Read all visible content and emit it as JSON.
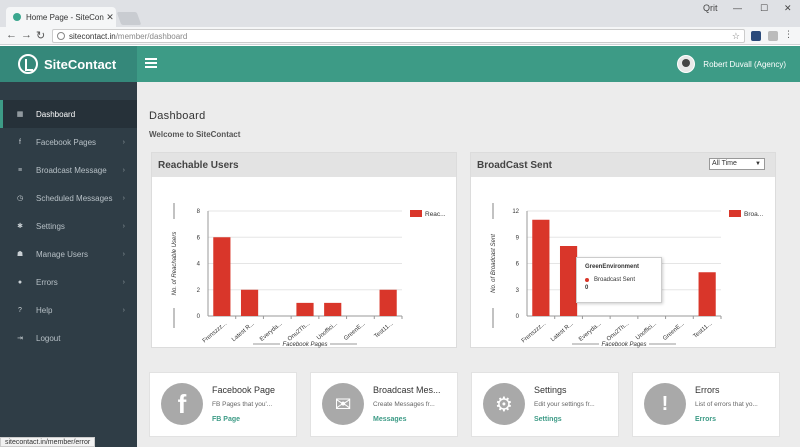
{
  "browser": {
    "tab_title": "Home Page - SiteContac",
    "tab_close": "✕",
    "window_label": "Qrit",
    "url_host": "sitecontact.in",
    "url_path": "/member/dashboard",
    "status_url": "sitecontact.in/member/error"
  },
  "header": {
    "logo_text": "SiteContact",
    "user_name": "Robert Duvall (Agency)"
  },
  "sidebar": {
    "items": [
      {
        "label": "Dashboard",
        "icon": "grid-icon",
        "glyph": "▦",
        "active": true,
        "has_chevron": false
      },
      {
        "label": "Facebook Pages",
        "icon": "facebook-icon",
        "glyph": "f",
        "active": false,
        "has_chevron": true
      },
      {
        "label": "Broadcast Message",
        "icon": "list-icon",
        "glyph": "≡",
        "active": false,
        "has_chevron": true
      },
      {
        "label": "Scheduled Messages",
        "icon": "clock-icon",
        "glyph": "◷",
        "active": false,
        "has_chevron": true
      },
      {
        "label": "Settings",
        "icon": "gear-icon",
        "glyph": "✱",
        "active": false,
        "has_chevron": true
      },
      {
        "label": "Manage Users",
        "icon": "users-icon",
        "glyph": "☗",
        "active": false,
        "has_chevron": true
      },
      {
        "label": "Errors",
        "icon": "error-icon",
        "glyph": "●",
        "active": false,
        "has_chevron": true
      },
      {
        "label": "Help",
        "icon": "question-icon",
        "glyph": "?",
        "active": false,
        "has_chevron": true
      },
      {
        "label": "Logout",
        "icon": "logout-icon",
        "glyph": "⇥",
        "active": false,
        "has_chevron": false
      }
    ]
  },
  "main": {
    "title": "Dashboard",
    "subtitle": "Welcome to SiteContact"
  },
  "panels": {
    "reachable_title": "Reachable Users",
    "broadcast_title": "BroadCast Sent",
    "range_select": "All Time",
    "tooltip": {
      "title": "GreenEnvironment",
      "series": "Broadcast Sent",
      "value": "0"
    }
  },
  "chart_data": [
    {
      "type": "bar",
      "categories": [
        "Frenszzz...",
        "Latest R...",
        "Everyda...",
        "Onu2Th...",
        "Unoffici...",
        "GreenE...",
        "Test11..."
      ],
      "values": [
        6,
        2,
        0,
        1,
        1,
        0,
        2
      ],
      "series": [
        {
          "name": "Reac...",
          "values": [
            6,
            2,
            0,
            1,
            1,
            0,
            2
          ]
        }
      ],
      "xlabel": "Facebook Pages",
      "ylabel": "No. of Reachable Users",
      "yticks": [
        "0",
        "2",
        "4",
        "6",
        "8"
      ],
      "ylim": [
        0,
        8
      ],
      "color": "#d9362a",
      "legend": "top-right",
      "grid": true
    },
    {
      "type": "bar",
      "categories": [
        "Frenszzz...",
        "Latest R...",
        "Everyda...",
        "Onu2Th...",
        "Unoffici...",
        "GreenE...",
        "Test11..."
      ],
      "values": [
        11,
        8,
        0,
        0,
        0,
        0,
        5
      ],
      "series": [
        {
          "name": "Broa...",
          "values": [
            11,
            8,
            0,
            0,
            0,
            0,
            5
          ]
        }
      ],
      "xlabel": "Facebook Pages",
      "ylabel": "No. of Broadcast Sent",
      "yticks": [
        "0",
        "3",
        "6",
        "9",
        "12"
      ],
      "ylim": [
        0,
        12
      ],
      "color": "#d9362a",
      "legend": "top-right",
      "grid": true
    }
  ],
  "cards": [
    {
      "title": "Facebook Page",
      "sub": "FB Pages that you'...",
      "link": "FB Page",
      "icon": "facebook-circle-icon",
      "glyph": "f"
    },
    {
      "title": "Broadcast Mes...",
      "sub": "Create Messages fr...",
      "link": "Messages",
      "icon": "envelope-circle-icon",
      "glyph": "✉"
    },
    {
      "title": "Settings",
      "sub": "Edit your settings fr...",
      "link": "Settings",
      "icon": "gears-icon",
      "glyph": "⚙"
    },
    {
      "title": "Errors",
      "sub": "List of errors that yo...",
      "link": "Errors",
      "icon": "exclamation-circle-icon",
      "glyph": "!"
    }
  ]
}
